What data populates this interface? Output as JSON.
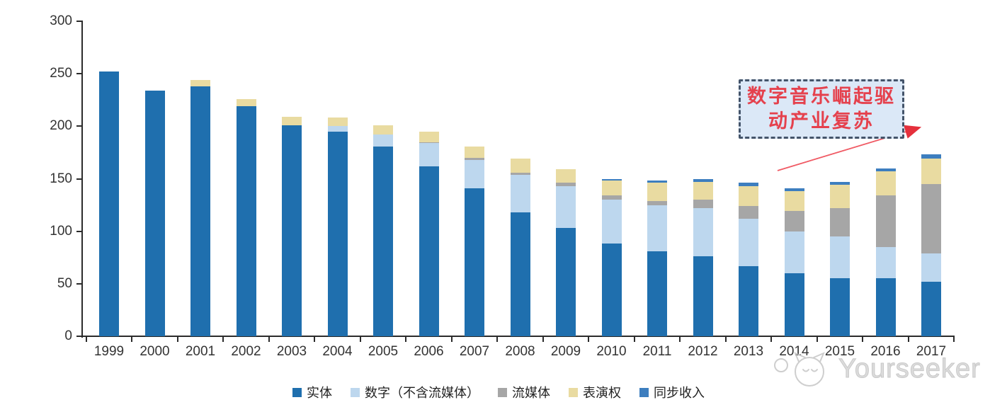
{
  "chart_data": {
    "type": "bar",
    "subtype": "stacked",
    "title": "",
    "xlabel": "",
    "ylabel": "",
    "ylim": [
      0,
      300
    ],
    "y_ticks": [
      0,
      50,
      100,
      150,
      200,
      250,
      300
    ],
    "grid": false,
    "legend_position": "bottom",
    "categories": [
      "1999",
      "2000",
      "2001",
      "2002",
      "2003",
      "2004",
      "2005",
      "2006",
      "2007",
      "2008",
      "2009",
      "2010",
      "2011",
      "2012",
      "2013",
      "2014",
      "2015",
      "2016",
      "2017"
    ],
    "series": [
      {
        "name": "实体",
        "color": "#1f6fae",
        "values": [
          252,
          234,
          238,
          219,
          201,
          195,
          181,
          162,
          141,
          118,
          103,
          88,
          81,
          76,
          67,
          60,
          55,
          55,
          52
        ]
      },
      {
        "name": "数字（不含流媒体）",
        "color": "#bdd7ee",
        "values": [
          0,
          0,
          0,
          0,
          0,
          5,
          11,
          22,
          27,
          36,
          40,
          42,
          44,
          46,
          45,
          40,
          40,
          30,
          27
        ]
      },
      {
        "name": "流媒体",
        "color": "#a6a6a6",
        "values": [
          0,
          0,
          0,
          0,
          0,
          0,
          0,
          1,
          2,
          2,
          3,
          4,
          4,
          8,
          12,
          19,
          27,
          49,
          66
        ]
      },
      {
        "name": "表演权",
        "color": "#e9dba1",
        "values": [
          0,
          0,
          6,
          7,
          8,
          8,
          9,
          10,
          11,
          13,
          13,
          14,
          17,
          17,
          19,
          19,
          22,
          23,
          24
        ]
      },
      {
        "name": "同步收入",
        "color": "#3d7ebf",
        "values": [
          0,
          0,
          0,
          0,
          0,
          0,
          0,
          0,
          0,
          0,
          0,
          2,
          2,
          3,
          3,
          3,
          3,
          3,
          4
        ]
      }
    ]
  },
  "annotation": {
    "line1": "数字音乐崛起驱",
    "line2": "动产业复苏",
    "text_color": "#e5414d",
    "box_bg": "#dbe8f7",
    "box_border": "#44546a",
    "arrow_color": "#ee4a55"
  },
  "watermark": {
    "text": "Yourseeker",
    "logo": "cat-face-logo",
    "color": "#d0d0d0"
  }
}
